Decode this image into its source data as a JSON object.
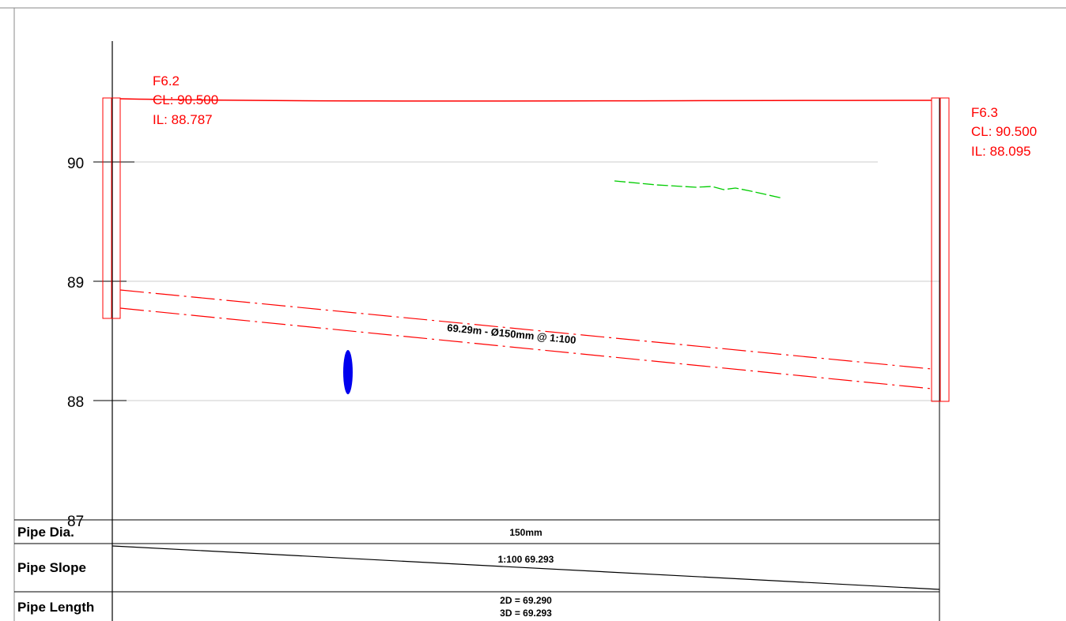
{
  "axis": {
    "ticks": [
      "90",
      "89",
      "88",
      "87"
    ]
  },
  "manholes": [
    {
      "name": "F6.2",
      "cover_level": "CL: 90.500",
      "invert_level": "IL: 88.787"
    },
    {
      "name": "F6.3",
      "cover_level": "CL: 90.500",
      "invert_level": "IL: 88.095"
    }
  ],
  "pipe": {
    "label": "69.29m - Ø150mm @ 1:100"
  },
  "table": {
    "rows": [
      {
        "label": "Pipe Dia.",
        "value": "150mm"
      },
      {
        "label": "Pipe Slope",
        "value": "1:100 69.293"
      },
      {
        "label": "Pipe Length",
        "value_2d": "2D = 69.290",
        "value_3d": "3D = 69.293"
      }
    ]
  },
  "colors": {
    "pipe": "#ff0000",
    "ground": "#00cc00",
    "marker": "#0000ee",
    "grid": "#cccccc"
  }
}
